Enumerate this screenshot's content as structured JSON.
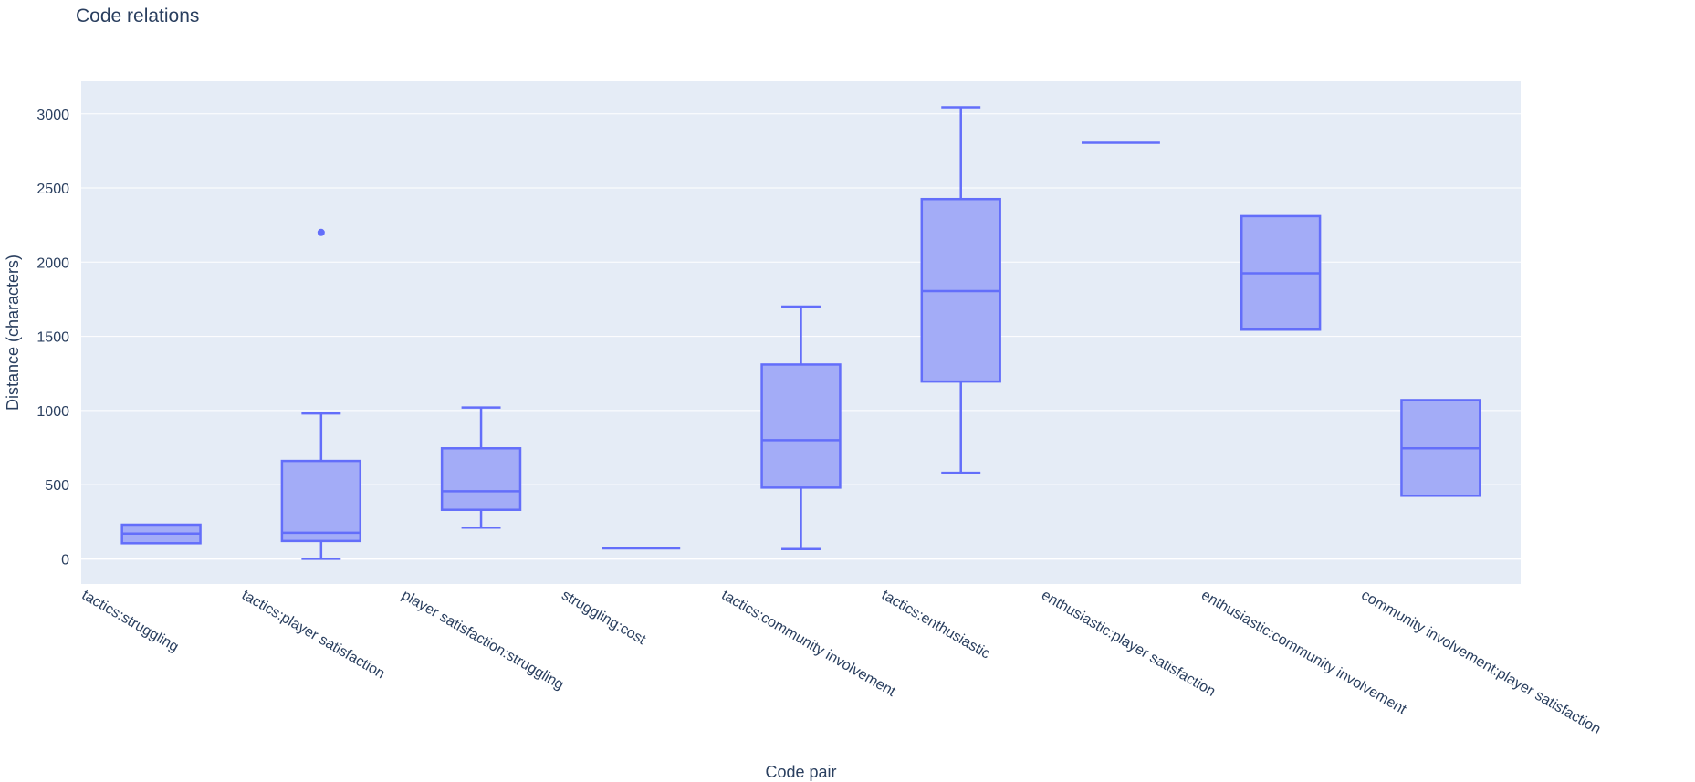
{
  "chart_data": {
    "type": "box",
    "title": "Code relations",
    "xlabel": "Code pair",
    "ylabel": "Distance (characters)",
    "ylim": [
      -170,
      3220
    ],
    "yticks": [
      0,
      500,
      1000,
      1500,
      2000,
      2500,
      3000
    ],
    "grid": true,
    "colors": {
      "box_fill": "#a3acf7",
      "box_line": "#636efa",
      "plot_bg": "#e5ecf6",
      "grid": "#ffffff",
      "text": "#2a3f5f"
    },
    "categories": [
      "tactics:struggling",
      "tactics:player satisfaction",
      "player satisfaction:struggling",
      "struggling:cost",
      "tactics:community involvement",
      "tactics:enthusiastic",
      "enthusiastic:player satisfaction",
      "enthusiastic:community involvement",
      "community involvement:player satisfaction"
    ],
    "boxes": [
      {
        "min": 105,
        "q1": 105,
        "median": 170,
        "q3": 230,
        "max": 230,
        "outliers": []
      },
      {
        "min": 0,
        "q1": 120,
        "median": 175,
        "q3": 660,
        "max": 980,
        "outliers": [
          2200
        ]
      },
      {
        "min": 210,
        "q1": 330,
        "median": 455,
        "q3": 745,
        "max": 1020,
        "outliers": []
      },
      {
        "min": 70,
        "q1": 70,
        "median": 70,
        "q3": 70,
        "max": 70,
        "outliers": []
      },
      {
        "min": 65,
        "q1": 480,
        "median": 800,
        "q3": 1310,
        "max": 1700,
        "outliers": []
      },
      {
        "min": 580,
        "q1": 1195,
        "median": 1805,
        "q3": 2425,
        "max": 3045,
        "outliers": []
      },
      {
        "min": 2805,
        "q1": 2805,
        "median": 2805,
        "q3": 2805,
        "max": 2805,
        "outliers": []
      },
      {
        "min": 1545,
        "q1": 1545,
        "median": 1925,
        "q3": 2310,
        "max": 2310,
        "outliers": []
      },
      {
        "min": 425,
        "q1": 425,
        "median": 745,
        "q3": 1070,
        "max": 1070,
        "outliers": []
      }
    ]
  }
}
